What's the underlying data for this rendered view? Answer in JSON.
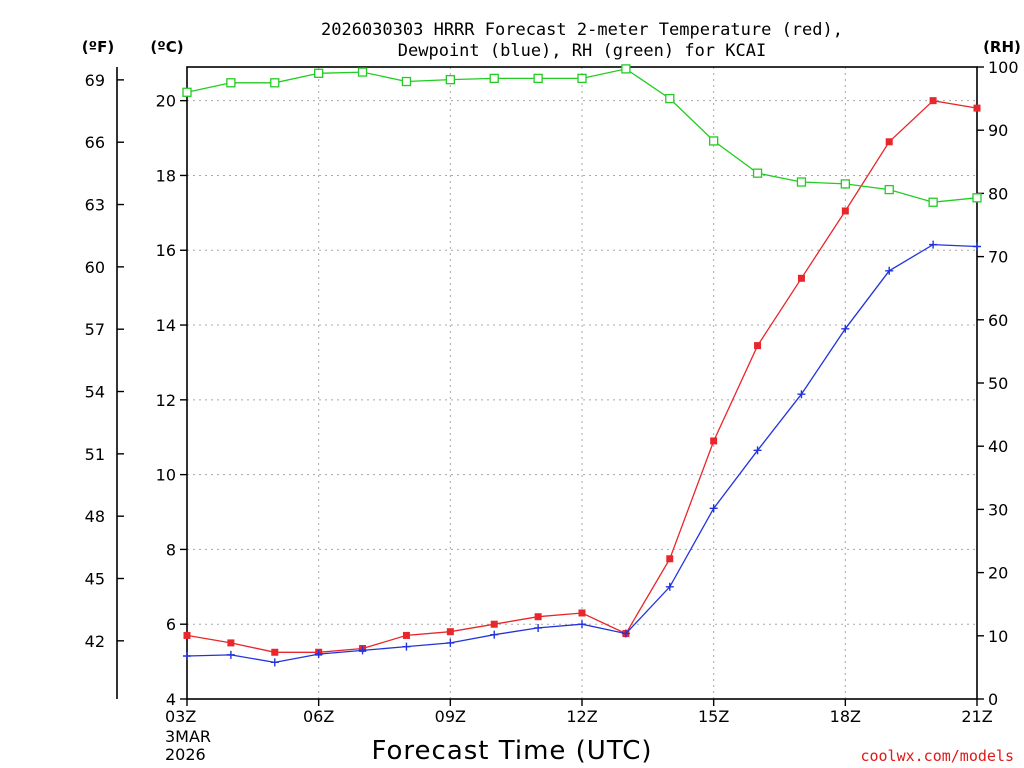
{
  "chart_data": {
    "type": "line",
    "title_line1": "2026030303 HRRR Forecast 2-meter Temperature (red),",
    "title_line2": "Dewpoint (blue), RH (green) for KCAI",
    "xlabel": "Forecast Time (UTC)",
    "x_date_line1": "3MAR",
    "x_date_line2": "2026",
    "credit": "coolwx.com/models",
    "unit_left_f": "(ºF)",
    "unit_left_c": "(ºC)",
    "unit_right": "(RH)",
    "x_hours": [
      3,
      4,
      5,
      6,
      7,
      8,
      9,
      10,
      11,
      12,
      13,
      14,
      15,
      16,
      17,
      18,
      19,
      20,
      21
    ],
    "x_range": [
      3,
      21
    ],
    "x_ticks": [
      {
        "hour": 3,
        "label": "03Z"
      },
      {
        "hour": 6,
        "label": "06Z"
      },
      {
        "hour": 9,
        "label": "09Z"
      },
      {
        "hour": 12,
        "label": "12Z"
      },
      {
        "hour": 15,
        "label": "15Z"
      },
      {
        "hour": 18,
        "label": "18Z"
      },
      {
        "hour": 21,
        "label": "21Z"
      }
    ],
    "celsius_range": [
      4,
      20.9
    ],
    "celsius_ticks": [
      "4",
      "6",
      "8",
      "10",
      "12",
      "14",
      "16",
      "18",
      "20"
    ],
    "fahrenheit_ticks": [
      "42",
      "45",
      "48",
      "51",
      "54",
      "57",
      "60",
      "63",
      "66",
      "69"
    ],
    "rh_range": [
      0,
      100
    ],
    "rh_ticks": [
      "0",
      "10",
      "20",
      "30",
      "40",
      "50",
      "60",
      "70",
      "80",
      "90",
      "100"
    ],
    "series": [
      {
        "name": "Temperature",
        "color": "#e8262b",
        "marker": "filled-square",
        "axis": "celsius",
        "values": [
          5.7,
          5.5,
          5.25,
          5.25,
          5.35,
          5.7,
          5.8,
          6.0,
          6.2,
          6.3,
          5.75,
          7.75,
          10.9,
          13.45,
          15.25,
          17.05,
          18.9,
          20.0,
          19.8
        ]
      },
      {
        "name": "Dewpoint",
        "color": "#2233dd",
        "marker": "plus",
        "axis": "celsius",
        "values": [
          5.15,
          5.18,
          4.98,
          5.2,
          5.3,
          5.4,
          5.5,
          5.72,
          5.9,
          6.0,
          5.75,
          7.0,
          9.1,
          10.65,
          12.15,
          13.9,
          15.45,
          16.15,
          16.1
        ]
      },
      {
        "name": "RH",
        "color": "#22cc22",
        "marker": "open-square",
        "axis": "rh",
        "values": [
          96,
          97.5,
          97.5,
          99,
          99.2,
          97.7,
          98,
          98.2,
          98.2,
          98.2,
          99.7,
          95,
          88.3,
          83.2,
          81.8,
          81.5,
          80.6,
          78.6,
          79.3
        ]
      }
    ]
  }
}
